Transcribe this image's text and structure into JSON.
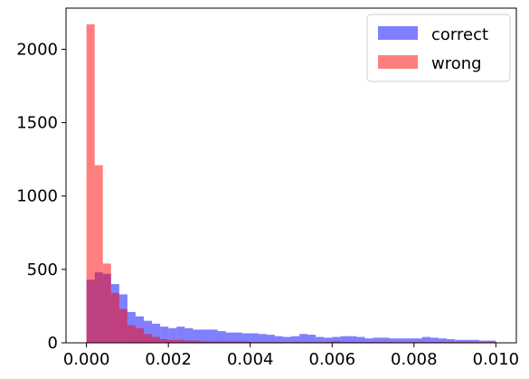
{
  "chart_data": {
    "type": "bar",
    "subtype": "overlapping-histogram",
    "title": "",
    "xlabel": "",
    "ylabel": "",
    "xlim": [
      -0.0005,
      0.0105
    ],
    "ylim": [
      0,
      2280
    ],
    "x_ticks": [
      0.0,
      0.002,
      0.004,
      0.006,
      0.008,
      0.01
    ],
    "x_tick_labels": [
      "0.000",
      "0.002",
      "0.004",
      "0.006",
      "0.008",
      "0.010"
    ],
    "y_ticks": [
      0,
      500,
      1000,
      1500,
      2000
    ],
    "y_tick_labels": [
      "0",
      "500",
      "1000",
      "1500",
      "2000"
    ],
    "bin_start": 0.0,
    "bin_width": 0.0002,
    "grid": false,
    "legend_position": "top-right",
    "series": [
      {
        "name": "correct",
        "color": "#0000ff",
        "alpha": 0.5,
        "values": [
          430,
          480,
          470,
          400,
          330,
          210,
          180,
          150,
          130,
          110,
          100,
          110,
          100,
          90,
          90,
          90,
          80,
          70,
          70,
          65,
          65,
          60,
          55,
          45,
          40,
          45,
          60,
          55,
          40,
          35,
          40,
          45,
          45,
          40,
          30,
          35,
          35,
          30,
          30,
          30,
          30,
          40,
          35,
          30,
          25,
          20,
          20,
          20,
          15,
          15
        ]
      },
      {
        "name": "wrong",
        "color": "#ff0000",
        "alpha": 0.5,
        "values": [
          2170,
          1210,
          540,
          340,
          230,
          120,
          100,
          60,
          40,
          25,
          20,
          20,
          15,
          15,
          10,
          10,
          10,
          10,
          10,
          10,
          5,
          5,
          5,
          5,
          5,
          5,
          5,
          5,
          5,
          5,
          10,
          5,
          5,
          5,
          5,
          5,
          5,
          5,
          5,
          5,
          5,
          5,
          5,
          5,
          5,
          5,
          5,
          5,
          5,
          5
        ]
      }
    ]
  }
}
